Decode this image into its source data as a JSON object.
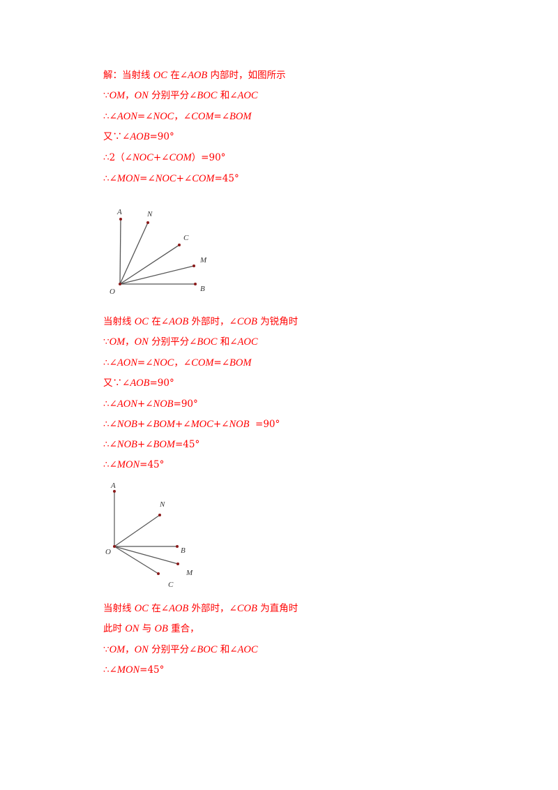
{
  "section1": {
    "lines": [
      "解：当射线 OC 在∠AOB 内部时，如图所示",
      "∵OM，ON 分别平分∠BOC 和∠AOC",
      "∴∠AON=∠NOC，∠COM=∠BOM",
      "又∵∠AOB=90°",
      "∴2（∠NOC+∠COM）=90°",
      "∴∠MON=∠NOC+∠COM=45°"
    ],
    "figure_labels": {
      "A": "A",
      "N": "N",
      "C": "C",
      "M": "M",
      "B": "B",
      "O": "O"
    }
  },
  "section2": {
    "lines": [
      "当射线 OC 在∠AOB 外部时，∠COB 为锐角时",
      "∵OM，ON 分别平分∠BOC 和∠AOC",
      "∴∠AON=∠NOC，∠COM=∠BOM",
      "又∵∠AOB=90°",
      "∴∠AON+∠NOB=90°",
      "∴∠NOB+∠BOM+∠MOC+∠NOB  =90°",
      "∴∠NOB+∠BOM=45°",
      "∴∠MON=45°"
    ],
    "figure_labels": {
      "A": "A",
      "N": "N",
      "B": "B",
      "M": "M",
      "C": "C",
      "O": "O"
    }
  },
  "section3": {
    "lines": [
      "当射线 OC 在∠AOB 外部时，∠COB 为直角时",
      "此时 ON 与 OB 重合，",
      "∵OM，ON 分别平分∠BOC 和∠AOC",
      "∴∠MON=45°"
    ]
  },
  "colors": {
    "text": "#ff0000",
    "line": "#555555",
    "point": "#8b1a1a"
  }
}
